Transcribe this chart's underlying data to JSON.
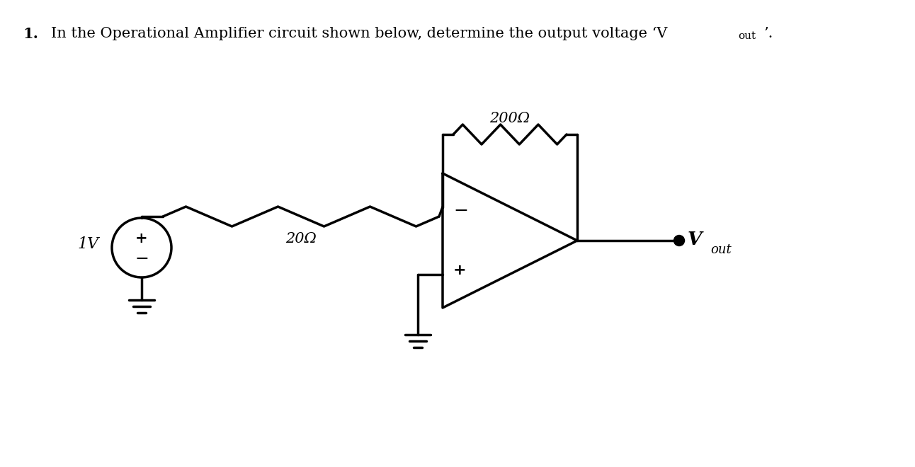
{
  "background_color": "#ffffff",
  "line_color": "#000000",
  "lw": 2.5,
  "resistor_20_label": "20Ω",
  "resistor_200_label": "200Ω",
  "voltage_label": "1V",
  "vout_label": "V",
  "vout_sub": "out",
  "title_main": "In the Operational Amplifier circuit shown below, determine the output voltage ‘V",
  "title_sub": "out",
  "title_end": "’."
}
